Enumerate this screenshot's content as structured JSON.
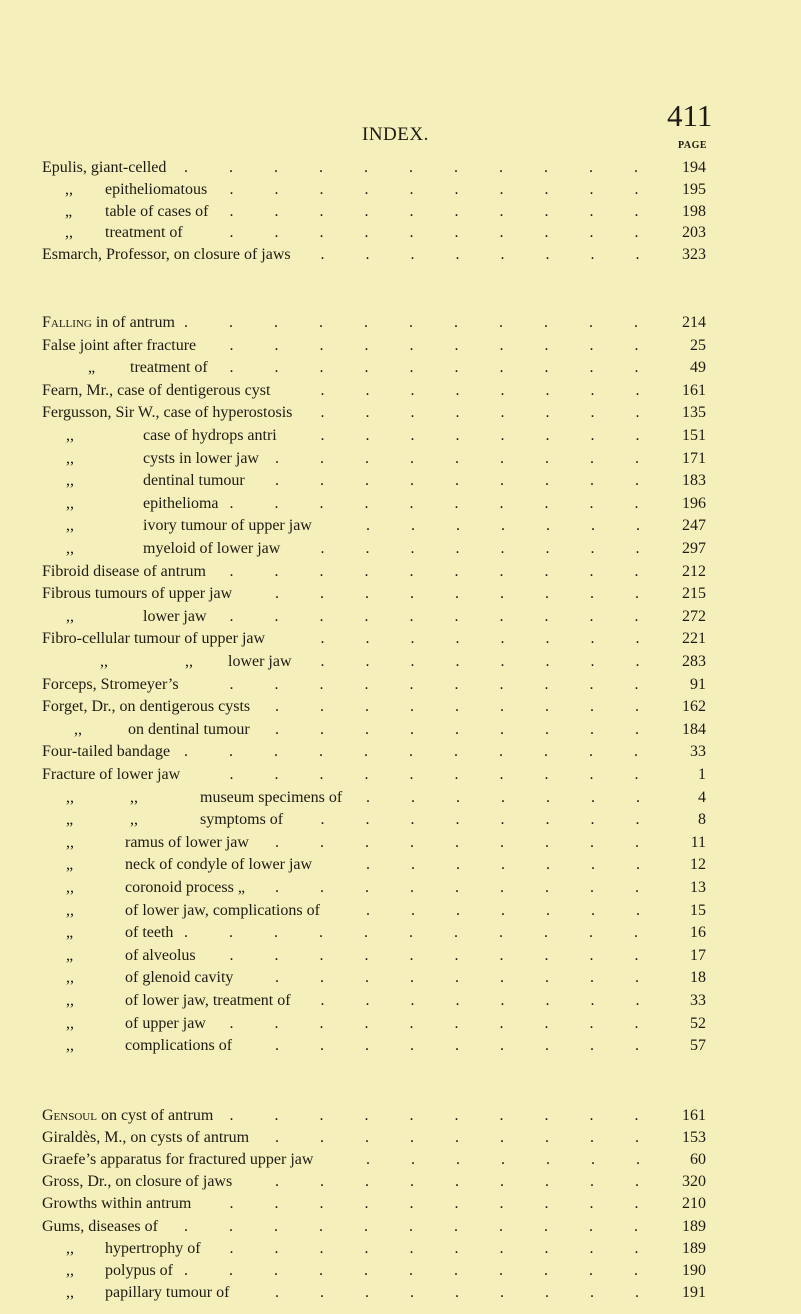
{
  "header": {
    "title": "INDEX.",
    "page_number": "411",
    "column_label": "PAGE"
  },
  "sections": [
    {
      "entries": [
        {
          "lead": "",
          "text": "Epulis, giant-celled",
          "dittos": [],
          "page": "194"
        },
        {
          "lead": "",
          "text": "epitheliomatous",
          "dittos": [
            ",,"
          ],
          "page": "195"
        },
        {
          "lead": "",
          "text": "table of cases of",
          "dittos": [
            "„"
          ],
          "page": "198"
        },
        {
          "lead": "",
          "text": "treatment of",
          "dittos": [
            ",,"
          ],
          "page": "203"
        },
        {
          "lead": "",
          "text": "Esmarch, Professor, on closure of jaws",
          "dittos": [],
          "page": "323"
        }
      ]
    },
    {
      "entries": [
        {
          "lead": "Falling",
          "text": " in of antrum",
          "dittos": [],
          "page": "214"
        },
        {
          "lead": "",
          "text": "False joint after fracture",
          "dittos": [],
          "page": "25"
        },
        {
          "lead": "",
          "text": "treatment of",
          "dittos": [
            "„"
          ],
          "page": "49"
        },
        {
          "lead": "",
          "text": "Fearn, Mr., case of dentigerous cyst",
          "dittos": [],
          "page": "161"
        },
        {
          "lead": "",
          "text": "Fergusson, Sir W., case of hyperostosis",
          "dittos": [],
          "page": "135"
        },
        {
          "lead": "",
          "text": "case of hydrops antri",
          "dittos": [
            ",,"
          ],
          "page": "151"
        },
        {
          "lead": "",
          "text": "cysts in lower jaw",
          "dittos": [
            ",,"
          ],
          "page": "171"
        },
        {
          "lead": "",
          "text": "dentinal tumour",
          "dittos": [
            ",,"
          ],
          "page": "183"
        },
        {
          "lead": "",
          "text": "epithelioma",
          "dittos": [
            ",,"
          ],
          "page": "196"
        },
        {
          "lead": "",
          "text": "ivory tumour of upper jaw",
          "dittos": [
            ",,"
          ],
          "page": "247"
        },
        {
          "lead": "",
          "text": "myeloid of lower jaw",
          "dittos": [
            ",,"
          ],
          "page": "297"
        },
        {
          "lead": "",
          "text": "Fibroid disease of antrum",
          "dittos": [],
          "page": "212"
        },
        {
          "lead": "",
          "text": "Fibrous tumours of upper jaw",
          "dittos": [],
          "page": "215"
        },
        {
          "lead": "",
          "text": "lower jaw",
          "dittos": [
            ",,"
          ],
          "page": "272"
        },
        {
          "lead": "",
          "text": "Fibro-cellular tumour of upper jaw",
          "dittos": [],
          "page": "221"
        },
        {
          "lead": "",
          "text": "lower jaw",
          "dittos": [
            ",,",
            ",,"
          ],
          "page": "283"
        },
        {
          "lead": "",
          "text": "Forceps, Stromeyer’s",
          "dittos": [],
          "page": "91"
        },
        {
          "lead": "",
          "text": "Forget, Dr., on dentigerous cysts",
          "dittos": [],
          "page": "162"
        },
        {
          "lead": "",
          "text": "on dentinal tumour",
          "dittos": [
            ",,"
          ],
          "page": "184"
        },
        {
          "lead": "",
          "text": "Four-tailed bandage",
          "dittos": [],
          "page": "33"
        },
        {
          "lead": "",
          "text": "Fracture of lower jaw",
          "dittos": [],
          "page": "1"
        },
        {
          "lead": "",
          "text": "museum specimens of",
          "dittos": [
            ",,",
            ",,"
          ],
          "page": "4"
        },
        {
          "lead": "",
          "text": "symptoms of",
          "dittos": [
            "„",
            ",,"
          ],
          "page": "8"
        },
        {
          "lead": "",
          "text": "ramus of lower jaw",
          "dittos": [
            ",,"
          ],
          "page": "11"
        },
        {
          "lead": "",
          "text": "neck of condyle of lower jaw",
          "dittos": [
            "„"
          ],
          "page": "12"
        },
        {
          "lead": "",
          "text": "coronoid process      „",
          "dittos": [
            ",,"
          ],
          "page": "13"
        },
        {
          "lead": "",
          "text": "of lower jaw, complications of",
          "dittos": [
            ",,"
          ],
          "page": "15"
        },
        {
          "lead": "",
          "text": "of teeth",
          "dittos": [
            "„"
          ],
          "page": "16"
        },
        {
          "lead": "",
          "text": "of alveolus",
          "dittos": [
            "„"
          ],
          "page": "17"
        },
        {
          "lead": "",
          "text": "of glenoid cavity",
          "dittos": [
            ",,"
          ],
          "page": "18"
        },
        {
          "lead": "",
          "text": "of lower jaw, treatment of",
          "dittos": [
            ",,"
          ],
          "page": "33"
        },
        {
          "lead": "",
          "text": "of upper jaw",
          "dittos": [
            ",,"
          ],
          "page": "52"
        },
        {
          "lead": "",
          "text": "complications of",
          "dittos": [
            ",,"
          ],
          "page": "57"
        }
      ]
    },
    {
      "entries": [
        {
          "lead": "Gensoul",
          "text": " on cyst of antrum",
          "dittos": [],
          "page": "161"
        },
        {
          "lead": "",
          "text": "Giraldès, M., on cysts of antrum",
          "dittos": [],
          "page": "153"
        },
        {
          "lead": "",
          "text": "Graefe’s apparatus for fractured upper jaw",
          "dittos": [],
          "page": "60"
        },
        {
          "lead": "",
          "text": "Gross, Dr., on closure of jaws",
          "dittos": [],
          "page": "320"
        },
        {
          "lead": "",
          "text": "Growths within antrum",
          "dittos": [],
          "page": "210"
        },
        {
          "lead": "",
          "text": "Gums, diseases of",
          "dittos": [],
          "page": "189"
        },
        {
          "lead": "",
          "text": "hypertrophy of",
          "dittos": [
            ",,"
          ],
          "page": "189"
        },
        {
          "lead": "",
          "text": "polypus of",
          "dittos": [
            ",,"
          ],
          "page": "190"
        },
        {
          "lead": "",
          "text": "papillary tumour of",
          "dittos": [
            ",,"
          ],
          "page": "191"
        }
      ]
    }
  ]
}
